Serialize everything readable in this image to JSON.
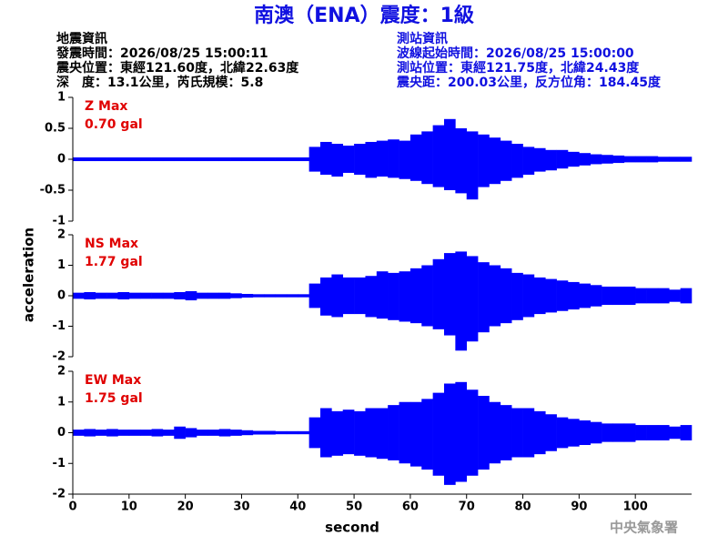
{
  "title": "南澳（ENA）震度：1級",
  "info_left": [
    "地震資訊",
    "發震時間：2026/08/25 15:00:11",
    "震央位置：東經121.60度，北緯22.63度",
    "深　度：13.1公里，芮氏規模：5.8"
  ],
  "info_right": [
    "測站資訊",
    "波線起始時間：2026/08/25 15:00:00",
    "測站位置：東經121.75度，北緯24.43度",
    "震央距：200.03公里，反方位角：184.45度"
  ],
  "footer": "中央氣象署",
  "axes": {
    "xlabel": "second",
    "ylabel": "acceleration",
    "xlim": [
      0,
      110
    ],
    "xticks": [
      0,
      10,
      20,
      30,
      40,
      50,
      60,
      70,
      80,
      90,
      100
    ]
  },
  "x": [
    0,
    2,
    4,
    6,
    8,
    10,
    12,
    14,
    16,
    18,
    20,
    22,
    24,
    26,
    28,
    30,
    32,
    34,
    36,
    38,
    40,
    42,
    44,
    46,
    48,
    50,
    52,
    54,
    56,
    58,
    60,
    62,
    64,
    66,
    68,
    70,
    72,
    74,
    76,
    78,
    80,
    82,
    84,
    86,
    88,
    90,
    92,
    94,
    96,
    98,
    100,
    102,
    104,
    106,
    108
  ],
  "chart_data": [
    {
      "type": "envelope",
      "label": "Z Max",
      "peak": "0.70 gal",
      "color": "#0000ff",
      "ylim": [
        -1,
        1
      ],
      "yticks": [
        -1,
        -0.5,
        0,
        0.5,
        1
      ],
      "upper": [
        0.03,
        0.03,
        0.03,
        0.03,
        0.03,
        0.03,
        0.03,
        0.03,
        0.03,
        0.03,
        0.03,
        0.03,
        0.03,
        0.03,
        0.03,
        0.03,
        0.03,
        0.03,
        0.03,
        0.03,
        0.03,
        0.2,
        0.28,
        0.25,
        0.22,
        0.25,
        0.28,
        0.3,
        0.32,
        0.3,
        0.4,
        0.45,
        0.55,
        0.65,
        0.5,
        0.45,
        0.4,
        0.35,
        0.3,
        0.25,
        0.2,
        0.18,
        0.15,
        0.15,
        0.12,
        0.1,
        0.08,
        0.07,
        0.06,
        0.05,
        0.05,
        0.05,
        0.04,
        0.04,
        0.04
      ],
      "lower": [
        -0.03,
        -0.03,
        -0.03,
        -0.03,
        -0.03,
        -0.03,
        -0.03,
        -0.03,
        -0.03,
        -0.03,
        -0.03,
        -0.03,
        -0.03,
        -0.03,
        -0.03,
        -0.03,
        -0.03,
        -0.03,
        -0.03,
        -0.03,
        -0.03,
        -0.2,
        -0.25,
        -0.28,
        -0.22,
        -0.25,
        -0.3,
        -0.28,
        -0.3,
        -0.32,
        -0.35,
        -0.4,
        -0.45,
        -0.5,
        -0.55,
        -0.65,
        -0.45,
        -0.4,
        -0.35,
        -0.3,
        -0.25,
        -0.2,
        -0.18,
        -0.15,
        -0.12,
        -0.1,
        -0.08,
        -0.07,
        -0.06,
        -0.05,
        -0.05,
        -0.05,
        -0.04,
        -0.04,
        -0.04
      ]
    },
    {
      "type": "envelope",
      "label": "NS Max",
      "peak": "1.77 gal",
      "color": "#0000ff",
      "ylim": [
        -2,
        2
      ],
      "yticks": [
        -2,
        -1,
        0,
        1,
        2
      ],
      "upper": [
        0.1,
        0.12,
        0.1,
        0.1,
        0.12,
        0.1,
        0.1,
        0.1,
        0.1,
        0.12,
        0.15,
        0.1,
        0.1,
        0.1,
        0.08,
        0.06,
        0.05,
        0.05,
        0.05,
        0.05,
        0.05,
        0.4,
        0.6,
        0.7,
        0.6,
        0.6,
        0.65,
        0.8,
        0.75,
        0.8,
        0.9,
        1.0,
        1.2,
        1.4,
        1.45,
        1.3,
        1.1,
        1.0,
        0.9,
        0.75,
        0.7,
        0.6,
        0.55,
        0.5,
        0.45,
        0.4,
        0.35,
        0.3,
        0.3,
        0.3,
        0.25,
        0.25,
        0.25,
        0.2,
        0.25
      ],
      "lower": [
        -0.1,
        -0.12,
        -0.1,
        -0.1,
        -0.12,
        -0.1,
        -0.1,
        -0.1,
        -0.1,
        -0.12,
        -0.15,
        -0.1,
        -0.1,
        -0.1,
        -0.08,
        -0.06,
        -0.05,
        -0.05,
        -0.05,
        -0.05,
        -0.05,
        -0.4,
        -0.65,
        -0.7,
        -0.6,
        -0.6,
        -0.7,
        -0.75,
        -0.8,
        -0.85,
        -0.9,
        -1.0,
        -1.1,
        -1.3,
        -1.8,
        -1.5,
        -1.2,
        -1.0,
        -0.9,
        -0.8,
        -0.7,
        -0.6,
        -0.55,
        -0.5,
        -0.45,
        -0.4,
        -0.35,
        -0.3,
        -0.3,
        -0.3,
        -0.25,
        -0.25,
        -0.25,
        -0.2,
        -0.25
      ]
    },
    {
      "type": "envelope",
      "label": "EW Max",
      "peak": "1.75 gal",
      "color": "#0000ff",
      "ylim": [
        -2,
        2
      ],
      "yticks": [
        -2,
        -1,
        0,
        1,
        2
      ],
      "upper": [
        0.1,
        0.12,
        0.1,
        0.12,
        0.1,
        0.1,
        0.1,
        0.12,
        0.1,
        0.2,
        0.15,
        0.1,
        0.1,
        0.12,
        0.1,
        0.08,
        0.06,
        0.06,
        0.05,
        0.05,
        0.05,
        0.5,
        0.8,
        0.7,
        0.75,
        0.7,
        0.8,
        0.8,
        0.9,
        1.0,
        1.0,
        1.1,
        1.3,
        1.6,
        1.65,
        1.4,
        1.2,
        1.0,
        0.9,
        0.8,
        0.8,
        0.7,
        0.6,
        0.5,
        0.45,
        0.4,
        0.35,
        0.3,
        0.3,
        0.3,
        0.25,
        0.25,
        0.25,
        0.2,
        0.25
      ],
      "lower": [
        -0.1,
        -0.12,
        -0.1,
        -0.12,
        -0.1,
        -0.1,
        -0.1,
        -0.12,
        -0.1,
        -0.2,
        -0.15,
        -0.1,
        -0.1,
        -0.12,
        -0.1,
        -0.08,
        -0.06,
        -0.06,
        -0.05,
        -0.05,
        -0.05,
        -0.5,
        -0.8,
        -0.75,
        -0.7,
        -0.75,
        -0.8,
        -0.85,
        -0.9,
        -1.0,
        -1.1,
        -1.2,
        -1.4,
        -1.7,
        -1.6,
        -1.4,
        -1.2,
        -1.0,
        -0.9,
        -0.8,
        -0.8,
        -0.7,
        -0.6,
        -0.5,
        -0.45,
        -0.4,
        -0.35,
        -0.3,
        -0.3,
        -0.3,
        -0.25,
        -0.25,
        -0.25,
        -0.2,
        -0.25
      ]
    }
  ]
}
